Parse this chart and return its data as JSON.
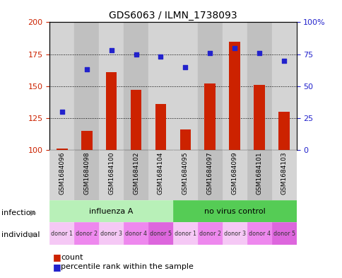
{
  "title": "GDS6063 / ILMN_1738093",
  "samples": [
    "GSM1684096",
    "GSM1684098",
    "GSM1684100",
    "GSM1684102",
    "GSM1684104",
    "GSM1684095",
    "GSM1684097",
    "GSM1684099",
    "GSM1684101",
    "GSM1684103"
  ],
  "counts": [
    101,
    115,
    161,
    147,
    136,
    116,
    152,
    185,
    151,
    130
  ],
  "percentiles": [
    30,
    63,
    78,
    75,
    73,
    65,
    76,
    80,
    76,
    70
  ],
  "ylim_left": [
    100,
    200
  ],
  "ylim_right": [
    0,
    100
  ],
  "yticks_left": [
    100,
    125,
    150,
    175,
    200
  ],
  "yticks_right": [
    0,
    25,
    50,
    75,
    100
  ],
  "infection_groups": [
    {
      "label": "influenza A",
      "start": 0,
      "end": 5,
      "color": "#b8f0b8"
    },
    {
      "label": "no virus control",
      "start": 5,
      "end": 10,
      "color": "#55cc55"
    }
  ],
  "individual_labels": [
    "donor 1",
    "donor 2",
    "donor 3",
    "donor 4",
    "donor 5",
    "donor 1",
    "donor 2",
    "donor 3",
    "donor 4",
    "donor 5"
  ],
  "individual_colors": [
    "#f5c8f5",
    "#ee88ee",
    "#f5c8f5",
    "#ee88ee",
    "#dd66dd",
    "#f5c8f5",
    "#ee88ee",
    "#f5c8f5",
    "#ee88ee",
    "#dd66dd"
  ],
  "bar_color": "#cc2200",
  "dot_color": "#2222cc",
  "grid_color": "#000000",
  "tick_color_left": "#cc2200",
  "tick_color_right": "#2222cc",
  "col_colors": [
    "#d4d4d4",
    "#c0c0c0",
    "#d4d4d4",
    "#c0c0c0",
    "#d4d4d4",
    "#d4d4d4",
    "#c0c0c0",
    "#d4d4d4",
    "#c0c0c0",
    "#d4d4d4"
  ],
  "infection_row_label": "infection",
  "individual_row_label": "individual",
  "legend_count_label": "count",
  "legend_percentile_label": "percentile rank within the sample",
  "arrow_color": "#888888"
}
